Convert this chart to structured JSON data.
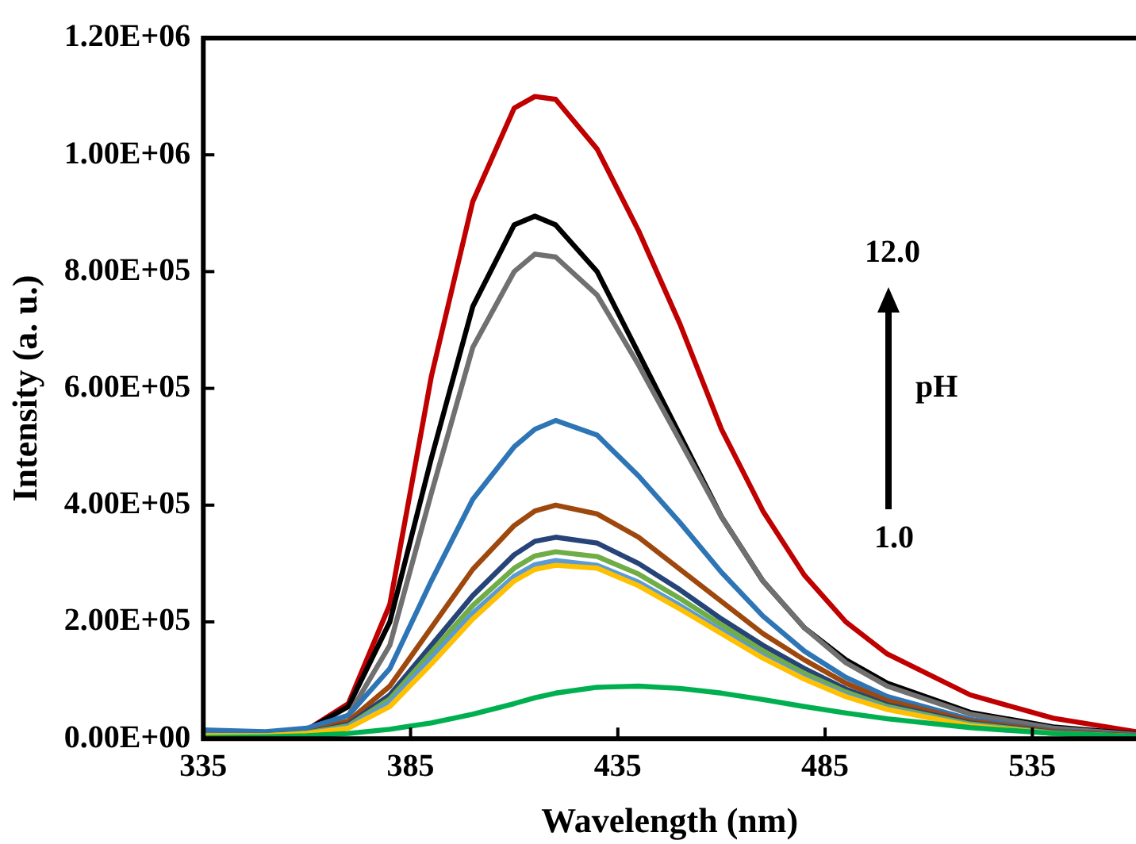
{
  "chart_data": {
    "type": "line",
    "xlabel": "Wavelength (nm)",
    "ylabel": "Intensity (a. u.)",
    "x": [
      335,
      350,
      360,
      370,
      380,
      390,
      400,
      410,
      415,
      420,
      430,
      440,
      450,
      460,
      470,
      480,
      490,
      500,
      520,
      540,
      560
    ],
    "series": [
      {
        "color": "#00b050",
        "values": [
          2000,
          3000,
          5000,
          9000,
          16000,
          27000,
          42000,
          60000,
          70000,
          78000,
          88000,
          90000,
          86000,
          78000,
          67000,
          55000,
          44000,
          34000,
          19000,
          9000,
          4000
        ]
      },
      {
        "color": "#ffc000",
        "values": [
          5000,
          5000,
          9000,
          18000,
          55000,
          128000,
          205000,
          270000,
          290000,
          297000,
          292000,
          262000,
          222000,
          180000,
          138000,
          102000,
          72000,
          50000,
          22000,
          9000,
          3500
        ]
      },
      {
        "color": "#5b9bd5",
        "values": [
          5000,
          5000,
          9000,
          20000,
          62000,
          138000,
          215000,
          278000,
          298000,
          305000,
          297000,
          268000,
          228000,
          185000,
          142000,
          105000,
          75000,
          52000,
          23000,
          9000,
          3500
        ]
      },
      {
        "color": "#70ad47",
        "values": [
          5000,
          5000,
          10000,
          22000,
          68000,
          148000,
          228000,
          292000,
          313000,
          320000,
          312000,
          282000,
          240000,
          195000,
          150000,
          112000,
          80000,
          55000,
          25000,
          10000,
          4000
        ]
      },
      {
        "color": "#264478",
        "values": [
          5000,
          5000,
          10000,
          25000,
          75000,
          160000,
          245000,
          315000,
          338000,
          345000,
          335000,
          300000,
          255000,
          205000,
          160000,
          120000,
          85000,
          58000,
          27000,
          11000,
          4000
        ]
      },
      {
        "color": "#9e480e",
        "values": [
          5000,
          5000,
          10000,
          30000,
          90000,
          190000,
          290000,
          365000,
          390000,
          400000,
          385000,
          345000,
          290000,
          235000,
          180000,
          135000,
          95000,
          65000,
          30000,
          13000,
          5000
        ]
      },
      {
        "color": "#2e75b6",
        "values": [
          15000,
          12000,
          18000,
          40000,
          120000,
          270000,
          410000,
          500000,
          530000,
          545000,
          520000,
          450000,
          370000,
          285000,
          210000,
          150000,
          105000,
          72000,
          33000,
          14000,
          6000
        ]
      },
      {
        "color": "#707070",
        "values": [
          8000,
          6000,
          12000,
          40000,
          160000,
          420000,
          670000,
          800000,
          830000,
          825000,
          760000,
          640000,
          510000,
          380000,
          270000,
          190000,
          130000,
          90000,
          42000,
          18000,
          7000
        ]
      },
      {
        "color": "#000000",
        "values": [
          5000,
          5000,
          15000,
          55000,
          200000,
          480000,
          740000,
          880000,
          895000,
          880000,
          800000,
          660000,
          520000,
          380000,
          270000,
          190000,
          135000,
          95000,
          45000,
          20000,
          8000
        ]
      },
      {
        "color": "#c00000",
        "values": [
          5000,
          5000,
          15000,
          60000,
          230000,
          620000,
          920000,
          1080000,
          1100000,
          1095000,
          1010000,
          870000,
          710000,
          530000,
          390000,
          280000,
          200000,
          145000,
          75000,
          35000,
          12000
        ]
      }
    ],
    "xlim": [
      335,
      560
    ],
    "xticks": [
      335,
      385,
      435,
      485,
      535
    ],
    "ylim": [
      0,
      1200000
    ],
    "yticks": [
      {
        "value": 0,
        "label": "0.00E+00"
      },
      {
        "value": 200000,
        "label": "2.00E+05"
      },
      {
        "value": 400000,
        "label": "4.00E+05"
      },
      {
        "value": 600000,
        "label": "6.00E+05"
      },
      {
        "value": 800000,
        "label": "8.00E+05"
      },
      {
        "value": 1000000,
        "label": "1.00E+06"
      },
      {
        "value": 1200000,
        "label": "1.20E+06"
      }
    ],
    "annotations": [
      "12.0",
      "pH",
      "1.0"
    ],
    "grid": false,
    "legend": false,
    "marker": "none",
    "line_style": "solid"
  }
}
